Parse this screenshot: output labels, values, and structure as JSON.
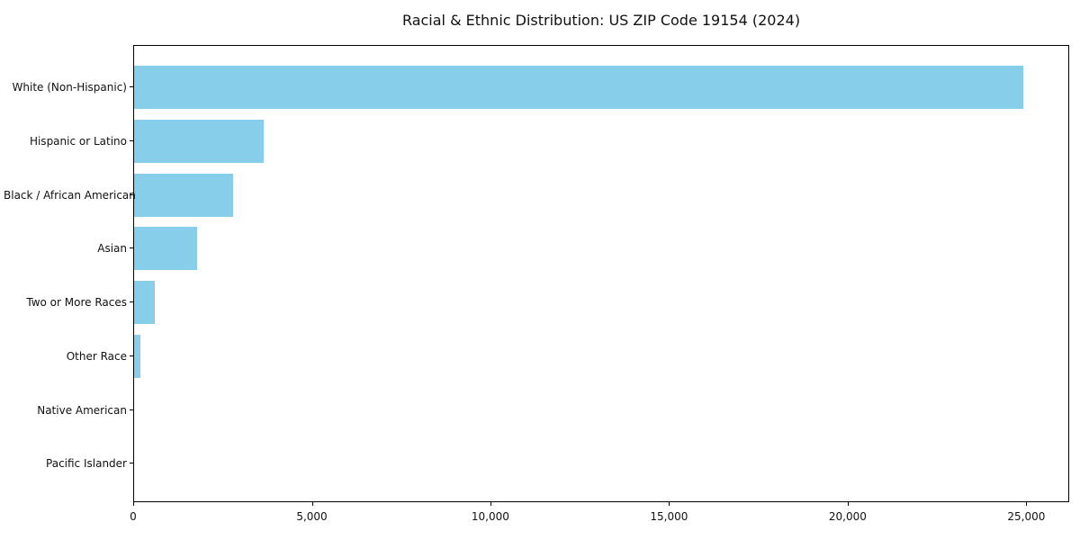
{
  "chart_data": {
    "type": "bar",
    "orientation": "horizontal",
    "title": "Racial & Ethnic Distribution: US ZIP Code 19154 (2024)",
    "xlabel": "",
    "ylabel": "",
    "categories": [
      "White (Non-Hispanic)",
      "Hispanic or Latino",
      "Black / African American",
      "Asian",
      "Two or More Races",
      "Other Race",
      "Native American",
      "Pacific Islander"
    ],
    "values": [
      24900,
      3630,
      2780,
      1760,
      580,
      175,
      0,
      0
    ],
    "xlim": [
      0,
      26200
    ],
    "x_ticks": {
      "values": [
        0,
        5000,
        10000,
        15000,
        20000,
        25000
      ],
      "labels": [
        "0",
        "5,000",
        "10,000",
        "15,000",
        "20,000",
        "25,000"
      ]
    },
    "grid": false,
    "legend": "none",
    "bar_color": "#87CEEB",
    "spine_color": "#000000",
    "background_color": "#ffffff"
  }
}
